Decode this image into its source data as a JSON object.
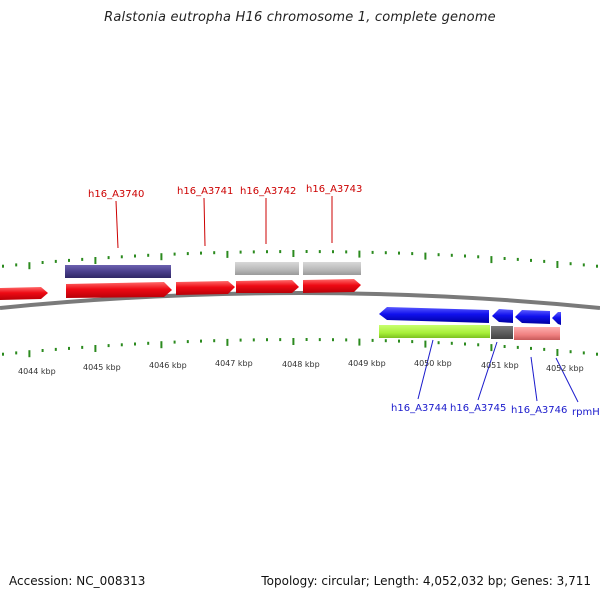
{
  "title": "Ralstonia eutropha H16 chromosome 1, complete genome",
  "footer": {
    "accession": "Accession: NC_008313",
    "summary": "Topology: circular; Length: 4,052,032 bp; Genes: 3,711"
  },
  "axis_labels": [
    "4044 kbp",
    "4045 kbp",
    "4046 kbp",
    "4047 kbp",
    "4048 kbp",
    "4049 kbp",
    "4050 kbp",
    "4051 kbp",
    "4052 kbp"
  ],
  "genes_top": [
    "h16_A3740",
    "h16_A3741",
    "h16_A3742",
    "h16_A3743"
  ],
  "genes_bottom": [
    "h16_A3744",
    "h16_A3745",
    "h16_A3746",
    "rpmH"
  ],
  "colors": {
    "forward_cds": "#e8000f",
    "reverse_cds": "#0a00dd",
    "top_feature_dark": "#4a3f8c",
    "top_feature_gray": "#b8b8b8",
    "bottom_green": "#a8f03a",
    "bottom_gray": "#5a5a5a",
    "bottom_pink": "#f08080",
    "backbone": "#7a7a7a",
    "ticks": "#2b8a1e",
    "label_forward": "#cc0000",
    "label_reverse": "#1a1acc"
  }
}
